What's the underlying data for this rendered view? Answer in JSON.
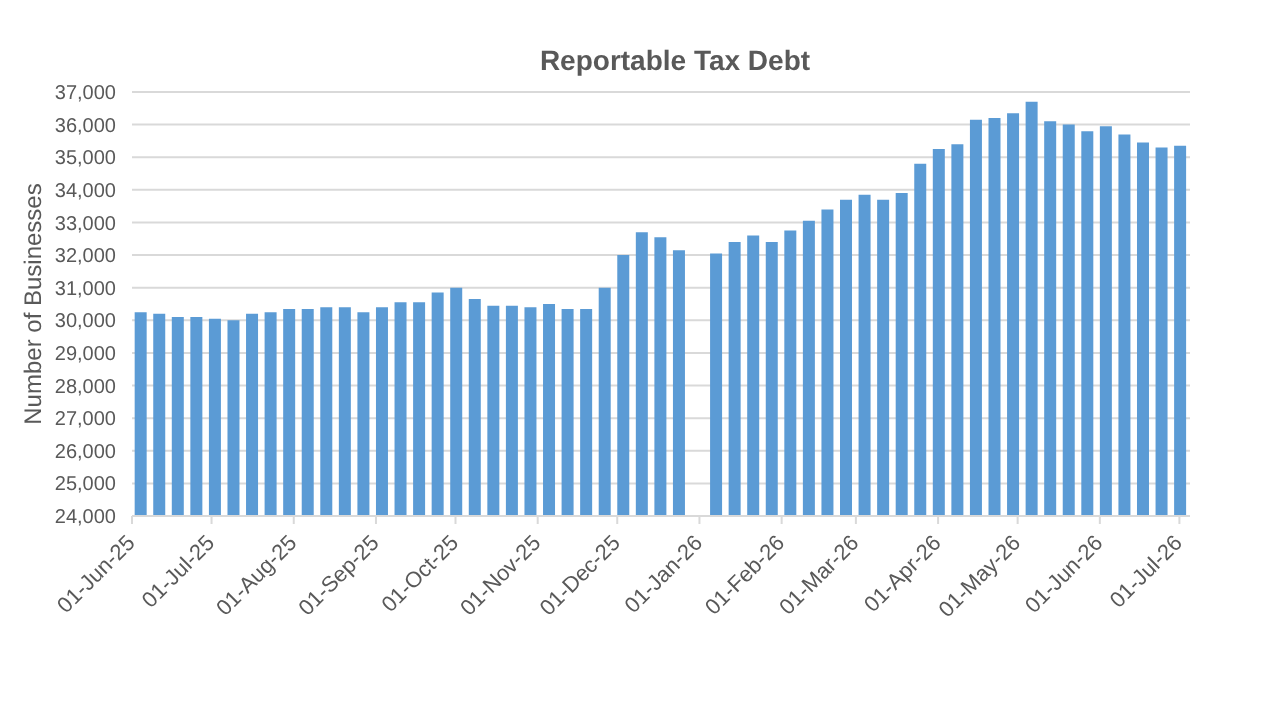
{
  "chart_data": {
    "type": "bar",
    "title": "Reportable Tax Debt",
    "ylabel": "Number of Businesses",
    "color": "#5b9bd5",
    "x": [
      "2025-06-04",
      "2025-06-11",
      "2025-06-18",
      "2025-06-25",
      "2025-07-02",
      "2025-07-09",
      "2025-07-16",
      "2025-07-23",
      "2025-07-30",
      "2025-08-06",
      "2025-08-13",
      "2025-08-20",
      "2025-08-27",
      "2025-09-03",
      "2025-09-10",
      "2025-09-17",
      "2025-09-24",
      "2025-10-01",
      "2025-10-08",
      "2025-10-15",
      "2025-10-22",
      "2025-10-29",
      "2025-11-05",
      "2025-11-12",
      "2025-11-19",
      "2025-11-26",
      "2025-12-03",
      "2025-12-10",
      "2025-12-17",
      "2025-12-24",
      "2025-12-31",
      "2026-01-07",
      "2026-01-14",
      "2026-01-21",
      "2026-01-28",
      "2026-02-04",
      "2026-02-11",
      "2026-02-18",
      "2026-02-25",
      "2026-03-04",
      "2026-03-11",
      "2026-03-18",
      "2026-03-25",
      "2026-04-01",
      "2026-04-08",
      "2026-04-15",
      "2026-04-22",
      "2026-04-29",
      "2026-05-06",
      "2026-05-13",
      "2026-05-20",
      "2026-05-27",
      "2026-06-03",
      "2026-06-10",
      "2026-06-17",
      "2026-06-24",
      "2026-07-01"
    ],
    "values": [
      30250,
      30200,
      30100,
      30100,
      30050,
      30000,
      30200,
      30250,
      30350,
      30350,
      30400,
      30400,
      30250,
      30400,
      30550,
      30550,
      30850,
      31000,
      30650,
      30450,
      30450,
      30400,
      30500,
      30350,
      30350,
      31000,
      32000,
      32700,
      32550,
      32150,
      null,
      32050,
      32400,
      32600,
      32400,
      32750,
      33050,
      33400,
      33700,
      33850,
      33700,
      33900,
      34800,
      35250,
      35400,
      36150,
      36200,
      36350,
      36700,
      36100,
      36000,
      35800,
      35950,
      35700,
      35450,
      35300,
      35350
    ],
    "xlim": [
      "2025-06-01",
      "2026-07-05"
    ],
    "xticks": [
      {
        "value": "2025-06-01",
        "label": "01-Jun-25"
      },
      {
        "value": "2025-07-01",
        "label": "01-Jul-25"
      },
      {
        "value": "2025-08-01",
        "label": "01-Aug-25"
      },
      {
        "value": "2025-09-01",
        "label": "01-Sep-25"
      },
      {
        "value": "2025-10-01",
        "label": "01-Oct-25"
      },
      {
        "value": "2025-11-01",
        "label": "01-Nov-25"
      },
      {
        "value": "2025-12-01",
        "label": "01-Dec-25"
      },
      {
        "value": "2026-01-01",
        "label": "01-Jan-26"
      },
      {
        "value": "2026-02-01",
        "label": "01-Feb-26"
      },
      {
        "value": "2026-03-01",
        "label": "01-Mar-26"
      },
      {
        "value": "2026-04-01",
        "label": "01-Apr-26"
      },
      {
        "value": "2026-05-01",
        "label": "01-May-26"
      },
      {
        "value": "2026-06-01",
        "label": "01-Jun-26"
      },
      {
        "value": "2026-07-01",
        "label": "01-Jul-26"
      }
    ],
    "ylim": [
      24000,
      37000
    ],
    "yticks": [
      {
        "value": 24000,
        "label": "24,000"
      },
      {
        "value": 25000,
        "label": "25,000"
      },
      {
        "value": 26000,
        "label": "26,000"
      },
      {
        "value": 27000,
        "label": "27,000"
      },
      {
        "value": 28000,
        "label": "28,000"
      },
      {
        "value": 29000,
        "label": "29,000"
      },
      {
        "value": 30000,
        "label": "30,000"
      },
      {
        "value": 31000,
        "label": "31,000"
      },
      {
        "value": 32000,
        "label": "32,000"
      },
      {
        "value": 33000,
        "label": "33,000"
      },
      {
        "value": 34000,
        "label": "34,000"
      },
      {
        "value": 35000,
        "label": "35,000"
      },
      {
        "value": 36000,
        "label": "36,000"
      },
      {
        "value": 37000,
        "label": "37,000"
      }
    ],
    "grid": "y"
  }
}
